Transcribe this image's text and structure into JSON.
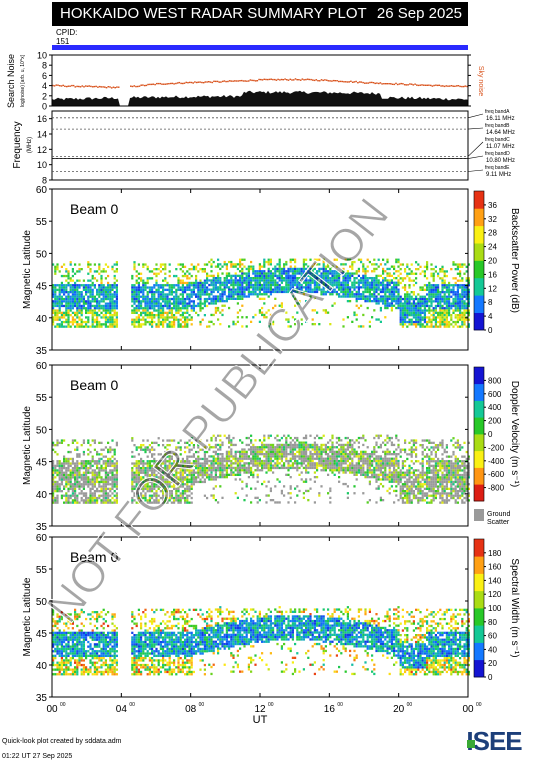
{
  "header": {
    "title": "HOKKAIDO WEST RADAR SUMMARY PLOT",
    "date": "26 Sep 2025"
  },
  "cpid": {
    "label": "CPID:",
    "value": "151"
  },
  "footer": {
    "credit": "Quick-look plot created by sddata.adm",
    "timestamp": "01:22 UT 27 Sep 2025",
    "logo": "ISEE"
  },
  "watermark": "NOT FOR PUBLICATION",
  "colors": {
    "noise_trace": "#d9541e",
    "cpid_bar": "#2a2aff",
    "ground_scatter": "#9a9a9a"
  },
  "chart_data": [
    {
      "type": "area",
      "ylabel": "Search Noise",
      "ylabel_sub": "log(noise) [arb. u, 10^x]",
      "right_label": "Sky noise",
      "ylim": [
        0,
        10
      ],
      "yticks": [
        "0",
        "2",
        "4",
        "6",
        "8",
        "10"
      ],
      "series": [
        {
          "name": "Sky noise",
          "x": [
            0,
            2,
            4,
            6,
            8,
            10,
            12,
            14,
            16,
            18,
            20,
            22,
            24
          ],
          "values": [
            4.0,
            3.8,
            3.6,
            4.3,
            4.6,
            4.8,
            5.1,
            5.2,
            5.0,
            4.6,
            4.3,
            4.0,
            3.8
          ]
        }
      ]
    },
    {
      "type": "line",
      "ylabel": "Frequency",
      "ylabel_unit": "(MHz)",
      "ylim": [
        8,
        17
      ],
      "yticks": [
        "8",
        "10",
        "12",
        "14",
        "16"
      ],
      "bands": [
        {
          "label": "freq bandA",
          "value_text": "16.11 MHz",
          "mhz": 16.11
        },
        {
          "label": "freq bandB",
          "value_text": "14.64 MHz",
          "mhz": 14.64
        },
        {
          "label": "freq bandC",
          "value_text": "11.07 MHz",
          "mhz": 11.07
        },
        {
          "label": "freq bandD",
          "value_text": "10.80 MHz",
          "mhz": 10.8
        },
        {
          "label": "freq bandE",
          "value_text": "9.11 MHz",
          "mhz": 9.11
        }
      ]
    },
    {
      "type": "heatmap",
      "beam": "Beam  0",
      "ylabel": "Magnetic Latitude",
      "ylim": [
        35,
        60
      ],
      "yticks": [
        "35",
        "40",
        "45",
        "50",
        "55",
        "60"
      ],
      "colorbar_label": "Backscatter Power (dB)",
      "colorbar_ticks": [
        "0",
        "4",
        "8",
        "12",
        "16",
        "20",
        "24",
        "28",
        "32",
        "36"
      ],
      "colorbar_range": [
        0,
        40
      ],
      "colormap": "power"
    },
    {
      "type": "heatmap",
      "beam": "Beam  0",
      "ylabel": "Magnetic Latitude",
      "ylim": [
        35,
        60
      ],
      "yticks": [
        "35",
        "40",
        "45",
        "50",
        "55",
        "60"
      ],
      "colorbar_label": "Doppler Velocity (m s⁻¹)",
      "colorbar_ticks": [
        "-800",
        "-600",
        "-400",
        "-200",
        "0",
        "200",
        "400",
        "600",
        "800"
      ],
      "colorbar_range": [
        -1000,
        1000
      ],
      "colormap": "velocity",
      "ground_label": [
        "Ground",
        "Scatter"
      ]
    },
    {
      "type": "heatmap",
      "beam": "Beam  0",
      "ylabel": "Magnetic Latitude",
      "ylim": [
        35,
        60
      ],
      "yticks": [
        "35",
        "40",
        "45",
        "50",
        "55",
        "60"
      ],
      "colorbar_label": "Spectral Width (m s⁻¹)",
      "colorbar_ticks": [
        "0",
        "20",
        "40",
        "60",
        "80",
        "100",
        "120",
        "140",
        "160",
        "180"
      ],
      "colorbar_range": [
        0,
        200
      ],
      "colormap": "width",
      "xlabel": "UT",
      "xlim": [
        0,
        24
      ],
      "xticks": [
        "00",
        "04",
        "08",
        "12",
        "16",
        "20",
        "00"
      ]
    }
  ]
}
